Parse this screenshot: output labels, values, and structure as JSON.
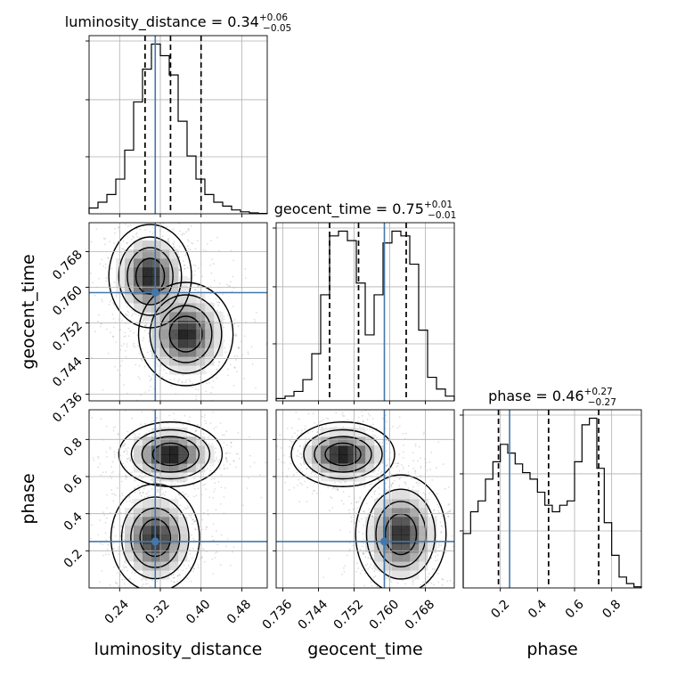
{
  "chart_data": {
    "type": "corner",
    "parameters": [
      {
        "name": "luminosity_distance",
        "axis_label": "luminosity_distance",
        "title_main": "luminosity_distance = 0.34",
        "title_sup": "+0.06",
        "title_sub": "−0.05",
        "median": 0.34,
        "plus": 0.06,
        "minus": 0.05,
        "quantiles": [
          0.29,
          0.34,
          0.4
        ],
        "truth": 0.31,
        "range": [
          0.18,
          0.53
        ],
        "ticks": [
          0.24,
          0.32,
          0.4,
          0.48
        ],
        "tick_labels": [
          "0.24",
          "0.32",
          "0.40",
          "0.48"
        ],
        "hist": {
          "edges_start": 0.18,
          "bin_width": 0.0175,
          "counts": [
            3,
            6,
            10,
            18,
            33,
            58,
            75,
            88,
            82,
            72,
            48,
            30,
            18,
            10,
            6,
            4,
            2,
            1,
            0.5,
            0.2
          ]
        }
      },
      {
        "name": "geocent_time",
        "axis_label": "geocent_time",
        "title_main": "geocent_time = 0.75",
        "title_sup": "+0.01",
        "title_sub": "−0.01",
        "median": 0.753,
        "plus": 0.01,
        "minus": 0.01,
        "quantiles": [
          0.7465,
          0.753,
          0.7637
        ],
        "truth": 0.7588,
        "range": [
          0.7345,
          0.7745
        ],
        "ticks": [
          0.736,
          0.744,
          0.752,
          0.76,
          0.768
        ],
        "tick_labels": [
          "0.736",
          "0.744",
          "0.752",
          "0.760",
          "0.768"
        ],
        "hist": {
          "edges_start": 0.7345,
          "bin_width": 0.002,
          "counts": [
            1,
            2,
            4,
            9,
            20,
            45,
            70,
            72,
            68,
            50,
            28,
            45,
            67,
            72,
            70,
            58,
            30,
            10,
            5,
            2
          ]
        }
      },
      {
        "name": "phase",
        "axis_label": "phase",
        "title_main": "phase = 0.46",
        "title_sup": "+0.27",
        "title_sub": "−0.27",
        "median": 0.46,
        "plus": 0.27,
        "minus": 0.27,
        "quantiles": [
          0.19,
          0.46,
          0.73
        ],
        "truth": 0.25,
        "range": [
          0.0,
          0.96
        ],
        "ticks": [
          0.2,
          0.4,
          0.6,
          0.8
        ],
        "tick_labels": [
          "0.2",
          "0.4",
          "0.6",
          "0.8"
        ],
        "hist": {
          "edges_start": 0.0,
          "bin_width": 0.04,
          "counts": [
            25,
            35,
            40,
            50,
            58,
            66,
            62,
            57,
            53,
            50,
            44,
            38,
            35,
            38,
            40,
            58,
            75,
            78,
            55,
            30,
            15,
            5,
            2,
            0.5
          ]
        }
      }
    ],
    "truth_color": "#4477aa",
    "contour_levels": 4,
    "density_modes": [
      {
        "pair": [
          "luminosity_distance",
          "geocent_time"
        ],
        "modes": [
          {
            "x": 0.3,
            "y": 0.7625,
            "sx": 0.028,
            "sy": 0.004,
            "w": 1.0
          },
          {
            "x": 0.37,
            "y": 0.7495,
            "sx": 0.032,
            "sy": 0.004,
            "w": 1.0
          }
        ]
      },
      {
        "pair": [
          "luminosity_distance",
          "phase"
        ],
        "modes": [
          {
            "x": 0.34,
            "y": 0.72,
            "sx": 0.035,
            "sy": 0.06,
            "w": 1.0
          },
          {
            "x": 0.31,
            "y": 0.27,
            "sx": 0.03,
            "sy": 0.1,
            "w": 0.9
          }
        ]
      },
      {
        "pair": [
          "geocent_time",
          "phase"
        ],
        "modes": [
          {
            "x": 0.7495,
            "y": 0.72,
            "sx": 0.004,
            "sy": 0.06,
            "w": 1.0
          },
          {
            "x": 0.7625,
            "y": 0.29,
            "sx": 0.0035,
            "sy": 0.11,
            "w": 0.9
          }
        ]
      }
    ]
  }
}
